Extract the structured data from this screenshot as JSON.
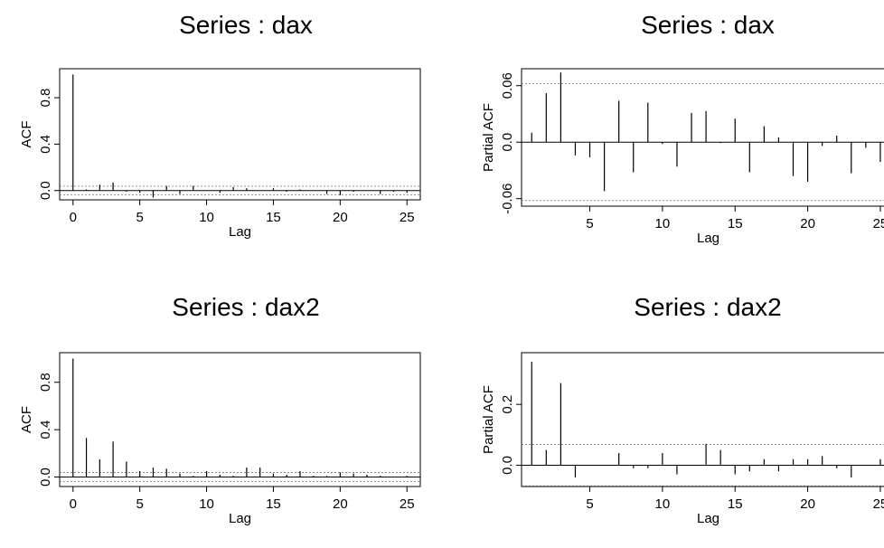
{
  "chart_data": [
    {
      "type": "bar",
      "id": "acf-dax",
      "title": "Series : dax",
      "xlabel": "Lag",
      "ylabel": "ACF",
      "xlim": [
        -1,
        26
      ],
      "ylim": [
        -0.08,
        1.05
      ],
      "xticks": [
        "0",
        "5",
        "10",
        "15",
        "20",
        "25"
      ],
      "yticks": [
        "0.0",
        "0.4",
        "0.8"
      ],
      "conf_limit": 0.038,
      "x": [
        0,
        1,
        2,
        3,
        4,
        5,
        6,
        7,
        8,
        9,
        10,
        11,
        12,
        13,
        14,
        15,
        16,
        17,
        18,
        19,
        20,
        21,
        22,
        23,
        24,
        25
      ],
      "values": [
        1.0,
        0.01,
        0.05,
        0.07,
        -0.01,
        -0.02,
        -0.06,
        0.04,
        -0.03,
        0.04,
        0.0,
        -0.02,
        0.03,
        0.02,
        0.0,
        0.02,
        -0.01,
        0.01,
        0.0,
        -0.03,
        -0.04,
        -0.01,
        0.0,
        -0.03,
        -0.01,
        -0.02
      ]
    },
    {
      "type": "bar",
      "id": "pacf-dax",
      "title": "Series : dax",
      "xlabel": "Lag",
      "ylabel": "Partial ACF",
      "xlim": [
        0.3,
        26
      ],
      "ylim": [
        -0.068,
        0.078
      ],
      "xticks": [
        "5",
        "10",
        "15",
        "20",
        "25"
      ],
      "yticks": [
        "-0.06",
        "0.0",
        "0.06"
      ],
      "conf_limit": 0.062,
      "x": [
        1,
        2,
        3,
        4,
        5,
        6,
        7,
        8,
        9,
        10,
        11,
        12,
        13,
        14,
        15,
        16,
        17,
        18,
        19,
        20,
        21,
        22,
        23,
        24,
        25
      ],
      "values": [
        0.01,
        0.052,
        0.074,
        -0.014,
        -0.016,
        -0.052,
        0.044,
        -0.032,
        0.042,
        -0.002,
        -0.026,
        0.031,
        0.033,
        -0.001,
        0.025,
        -0.032,
        0.017,
        0.005,
        -0.036,
        -0.042,
        -0.004,
        0.007,
        -0.033,
        -0.006,
        -0.021
      ]
    },
    {
      "type": "bar",
      "id": "acf-dax2",
      "title": "Series : dax2",
      "xlabel": "Lag",
      "ylabel": "ACF",
      "xlim": [
        -1,
        26
      ],
      "ylim": [
        -0.08,
        1.05
      ],
      "xticks": [
        "0",
        "5",
        "10",
        "15",
        "20",
        "25"
      ],
      "yticks": [
        "0.0",
        "0.4",
        "0.8"
      ],
      "conf_limit": 0.038,
      "x": [
        0,
        1,
        2,
        3,
        4,
        5,
        6,
        7,
        8,
        9,
        10,
        11,
        12,
        13,
        14,
        15,
        16,
        17,
        18,
        19,
        20,
        21,
        22,
        23,
        24,
        25
      ],
      "values": [
        1.0,
        0.33,
        0.15,
        0.3,
        0.13,
        0.05,
        0.08,
        0.07,
        0.03,
        0.01,
        0.05,
        0.02,
        0.01,
        0.08,
        0.08,
        0.03,
        0.02,
        0.05,
        0.01,
        0.01,
        0.04,
        0.03,
        0.02,
        0.01,
        0.0,
        0.01
      ]
    },
    {
      "type": "bar",
      "id": "pacf-dax2",
      "title": "Series : dax2",
      "xlabel": "Lag",
      "ylabel": "Partial ACF",
      "xlim": [
        0.3,
        26
      ],
      "ylim": [
        -0.07,
        0.37
      ],
      "xticks": [
        "5",
        "10",
        "15",
        "20",
        "25"
      ],
      "yticks": [
        "0.0",
        "0.2"
      ],
      "conf_limit": 0.068,
      "x": [
        1,
        2,
        3,
        4,
        5,
        6,
        7,
        8,
        9,
        10,
        11,
        12,
        13,
        14,
        15,
        16,
        17,
        18,
        19,
        20,
        21,
        22,
        23,
        24,
        25
      ],
      "values": [
        0.34,
        0.05,
        0.27,
        -0.04,
        0.0,
        0.0,
        0.04,
        -0.01,
        -0.01,
        0.04,
        -0.03,
        0.0,
        0.07,
        0.05,
        -0.03,
        -0.02,
        0.02,
        -0.02,
        0.02,
        0.02,
        0.03,
        -0.01,
        -0.04,
        0.0,
        0.02
      ]
    }
  ]
}
